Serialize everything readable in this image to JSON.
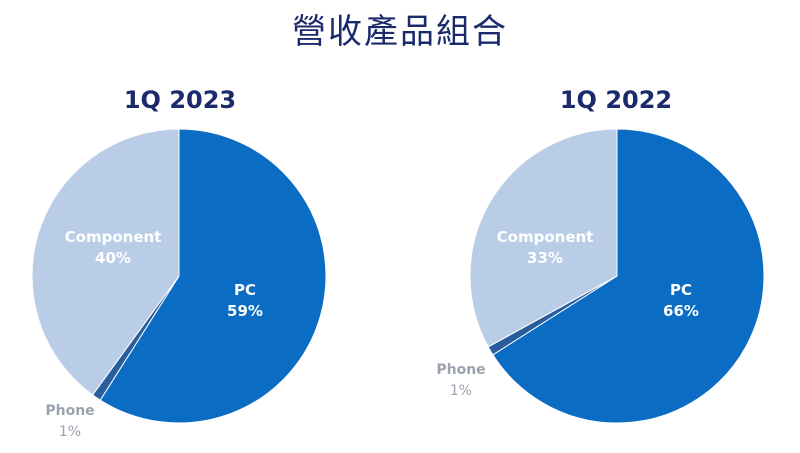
{
  "title": "營收產品組合",
  "colors": {
    "pc": "#0b6cc4",
    "phone": "#2a5d9c",
    "component": "#b9cde6",
    "title": "#1b2a6b",
    "phone_label": "#9aa3ad"
  },
  "chart_data": [
    {
      "type": "pie",
      "title": "1Q 2023",
      "slices": [
        {
          "label": "PC",
          "value": 59,
          "display": "59%"
        },
        {
          "label": "Phone",
          "value": 1,
          "display": "1%"
        },
        {
          "label": "Component",
          "value": 40,
          "display": "40%"
        }
      ]
    },
    {
      "type": "pie",
      "title": "1Q 2022",
      "slices": [
        {
          "label": "PC",
          "value": 66,
          "display": "66%"
        },
        {
          "label": "Phone",
          "value": 1,
          "display": "1%"
        },
        {
          "label": "Component",
          "value": 33,
          "display": "33%"
        }
      ]
    }
  ]
}
